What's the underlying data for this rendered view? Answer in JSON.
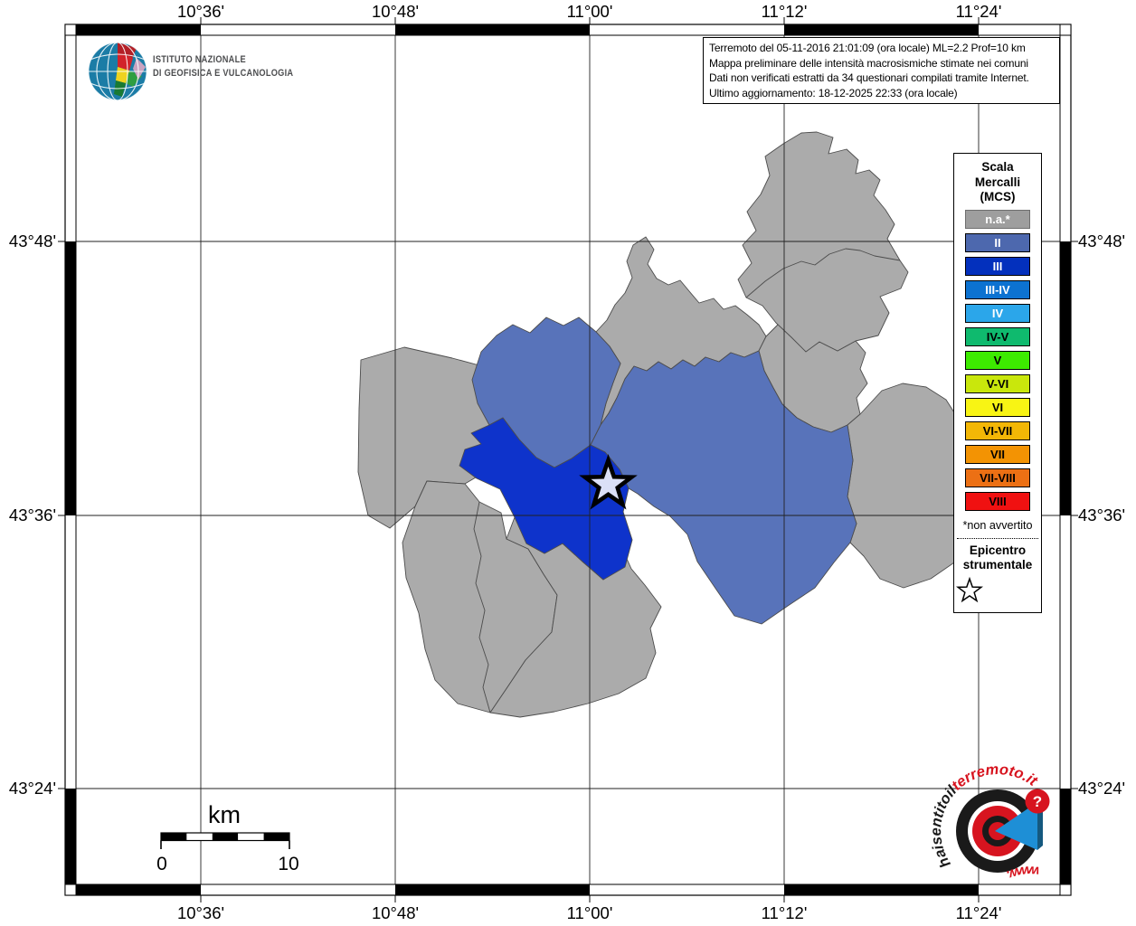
{
  "branding": {
    "institute_line1": "ISTITUTO NAZIONALE",
    "institute_line2": "DI GEOFISICA E VULCANOLOGIA"
  },
  "info_box": {
    "line1": "Terremoto del 05-11-2016 21:01:09 (ora locale) ML=2.2 Prof=10 km",
    "line2": "Mappa preliminare delle intensità macrosismiche stimate nei comuni",
    "line3": "Dati non verificati estratti da 34 questionari compilati tramite Internet.",
    "line4": "Ultimo aggiornamento: 18-12-2025 22:33 (ora locale)"
  },
  "legend": {
    "title_line1": "Scala",
    "title_line2": "Mercalli",
    "title_line3": "(MCS)",
    "items": [
      {
        "label": "n.a.*",
        "color": "#9e9e9e",
        "text_color": "#ffffff",
        "border": "#6f6f6f"
      },
      {
        "label": "II",
        "color": "#4d68ae",
        "text_color": "#ffffff",
        "border": "#000000"
      },
      {
        "label": "III",
        "color": "#0330bd",
        "text_color": "#ffffff",
        "border": "#000000"
      },
      {
        "label": "III-IV",
        "color": "#0c72d1",
        "text_color": "#ffffff",
        "border": "#000000"
      },
      {
        "label": "IV",
        "color": "#2ba6ea",
        "text_color": "#ffffff",
        "border": "#000000"
      },
      {
        "label": "IV-V",
        "color": "#0fba6e",
        "text_color": "#000000",
        "border": "#000000"
      },
      {
        "label": "V",
        "color": "#3deb00",
        "text_color": "#000000",
        "border": "#000000"
      },
      {
        "label": "V-VI",
        "color": "#c9e70c",
        "text_color": "#000000",
        "border": "#000000"
      },
      {
        "label": "VI",
        "color": "#f8f414",
        "text_color": "#000000",
        "border": "#000000"
      },
      {
        "label": "VI-VII",
        "color": "#f3b706",
        "text_color": "#000000",
        "border": "#000000"
      },
      {
        "label": "VII",
        "color": "#f39303",
        "text_color": "#000000",
        "border": "#000000"
      },
      {
        "label": "VII-VIII",
        "color": "#ec7014",
        "text_color": "#000000",
        "border": "#000000"
      },
      {
        "label": "VIII",
        "color": "#f01111",
        "text_color": "#000000",
        "border": "#000000"
      }
    ],
    "footnote": "*non avvertito",
    "epicenter_label_line1": "Epicentro",
    "epicenter_label_line2": "strumentale"
  },
  "axes": {
    "top": [
      "10°36'",
      "10°48'",
      "11°00'",
      "11°12'",
      "11°24'"
    ],
    "bottom": [
      "10°36'",
      "10°48'",
      "11°00'",
      "11°12'",
      "11°24'"
    ],
    "left": [
      "43°48'",
      "43°36'",
      "43°24'"
    ],
    "right": [
      "43°48'",
      "43°36'",
      "43°24'"
    ]
  },
  "scale_bar": {
    "unit": "km",
    "start_label": "0",
    "end_label": "10"
  },
  "watermark": {
    "prefix": "www.",
    "segment_black": "haisentito",
    "segment_black_2": "il",
    "segment_red": "terremoto.it",
    "question_mark": "?",
    "red": "#d7141f"
  },
  "map": {
    "fills": {
      "not_felt": "#ababab",
      "intensity_ii": "#5873ba",
      "intensity_iii": "#0e33cb"
    },
    "stroke": "#4c4c4c"
  }
}
